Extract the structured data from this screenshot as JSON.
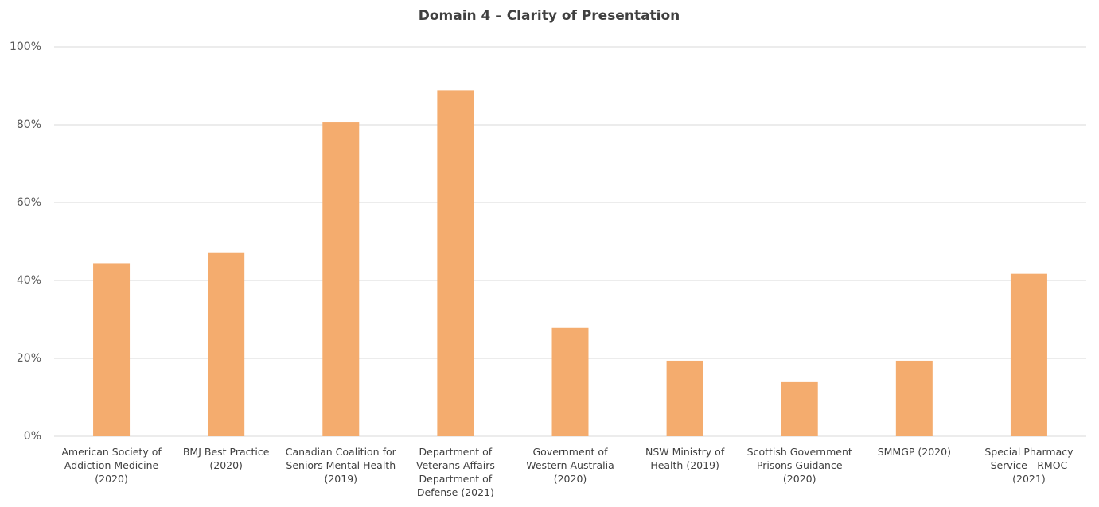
{
  "chart_data": {
    "type": "bar",
    "title": "Domain 4 – Clarity of Presentation",
    "categories": [
      "American Society of Addiction Medicine (2020)",
      "BMJ Best Practice (2020)",
      "Canadian Coalition for Seniors Mental Health (2019)",
      "Department of Veterans Affairs Department of Defense (2021)",
      "Government of Western Australia (2020)",
      "NSW Ministry of Health (2019)",
      "Scottish Government Prisons Guidance (2020)",
      "SMMGP (2020)",
      "Special Pharmacy Service - RMOC (2021)"
    ],
    "values": [
      44.4,
      47.2,
      80.6,
      88.9,
      27.8,
      19.4,
      13.9,
      19.4,
      41.7
    ],
    "color": "#f4ac6e",
    "ylim": [
      0,
      100
    ],
    "yticks": [
      {
        "value": 0,
        "label": "0%"
      },
      {
        "value": 20,
        "label": "20%"
      },
      {
        "value": 40,
        "label": "40%"
      },
      {
        "value": 60,
        "label": "60%"
      },
      {
        "value": 80,
        "label": "80%"
      },
      {
        "value": 100,
        "label": "100%"
      }
    ],
    "grid": true
  }
}
